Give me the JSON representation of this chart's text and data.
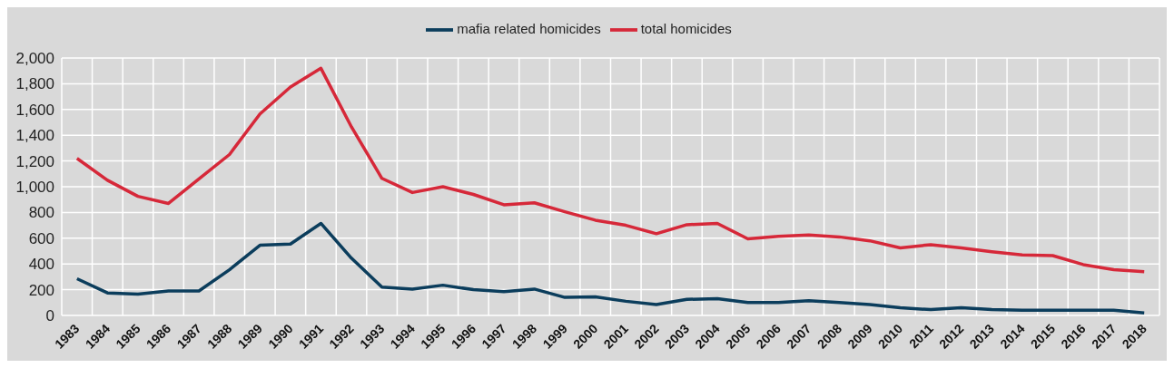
{
  "chart_data": {
    "type": "line",
    "categories": [
      "1983",
      "1984",
      "1985",
      "1986",
      "1987",
      "1988",
      "1989",
      "1990",
      "1991",
      "1992",
      "1993",
      "1994",
      "1995",
      "1996",
      "1997",
      "1998",
      "1999",
      "2000",
      "2001",
      "2002",
      "2003",
      "2004",
      "2005",
      "2006",
      "2007",
      "2008",
      "2009",
      "2010",
      "2011",
      "2012",
      "2013",
      "2014",
      "2015",
      "2016",
      "2017",
      "2018"
    ],
    "series": [
      {
        "name": "total homicides",
        "color": "#d62839",
        "values": [
          1220,
          1050,
          925,
          870,
          1060,
          1250,
          1565,
          1775,
          1920,
          1465,
          1065,
          955,
          1000,
          940,
          860,
          875,
          805,
          740,
          700,
          635,
          705,
          715,
          595,
          615,
          625,
          610,
          580,
          525,
          550,
          525,
          495,
          470,
          465,
          395,
          355,
          340
        ]
      },
      {
        "name": "mafia related homicides",
        "color": "#0b3d5c",
        "values": [
          285,
          175,
          165,
          190,
          190,
          355,
          545,
          555,
          715,
          445,
          220,
          205,
          235,
          200,
          185,
          205,
          140,
          145,
          110,
          85,
          125,
          130,
          100,
          100,
          115,
          100,
          85,
          60,
          45,
          60,
          45,
          40,
          40,
          40,
          40,
          20
        ]
      }
    ],
    "ylim": [
      0,
      2000
    ],
    "yticks": [
      {
        "value": 0,
        "label": "0"
      },
      {
        "value": 200,
        "label": "200"
      },
      {
        "value": 400,
        "label": "400"
      },
      {
        "value": 600,
        "label": "600"
      },
      {
        "value": 800,
        "label": "800"
      },
      {
        "value": 1000,
        "label": "1,000"
      },
      {
        "value": 1200,
        "label": "1,200"
      },
      {
        "value": 1400,
        "label": "1,400"
      },
      {
        "value": 1600,
        "label": "1,600"
      },
      {
        "value": 1800,
        "label": "1,800"
      },
      {
        "value": 2000,
        "label": "2,000"
      }
    ],
    "grid": true,
    "legend": "top",
    "marker": "none",
    "line_style": "solid"
  }
}
